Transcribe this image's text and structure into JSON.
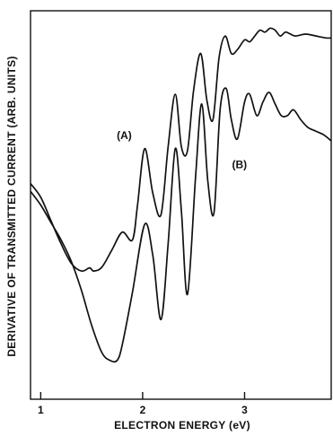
{
  "chart_data": {
    "type": "line",
    "title": "",
    "xlabel": "ELECTRON ENERGY (eV)",
    "ylabel": "DERIVATIVE OF TRANSMITTED CURRENT (ARB. UNITS)",
    "xlim": [
      0.9,
      3.85
    ],
    "ylim": [
      0,
      1
    ],
    "x_ticks": [
      1,
      2,
      3
    ],
    "x_tick_labels": [
      "1",
      "2",
      "3"
    ],
    "y_ticks": [],
    "grid": false,
    "legend": "none",
    "line_color": "#111111",
    "series": [
      {
        "name": "(A)",
        "x": [
          0.9,
          1.0,
          1.1,
          1.2,
          1.3,
          1.4,
          1.48,
          1.52,
          1.6,
          1.7,
          1.8,
          1.9,
          1.95,
          2.02,
          2.1,
          2.18,
          2.25,
          2.32,
          2.38,
          2.44,
          2.5,
          2.57,
          2.63,
          2.69,
          2.75,
          2.81,
          2.87,
          2.93,
          3.0,
          3.05,
          3.1,
          3.15,
          3.2,
          3.25,
          3.3,
          3.35,
          3.4,
          3.45,
          3.5,
          3.6,
          3.7,
          3.8,
          3.85
        ],
        "y": [
          0.555,
          0.52,
          0.46,
          0.4,
          0.35,
          0.33,
          0.338,
          0.33,
          0.34,
          0.385,
          0.43,
          0.41,
          0.5,
          0.645,
          0.53,
          0.475,
          0.65,
          0.785,
          0.65,
          0.64,
          0.795,
          0.89,
          0.77,
          0.72,
          0.88,
          0.935,
          0.89,
          0.9,
          0.925,
          0.92,
          0.935,
          0.95,
          0.945,
          0.955,
          0.95,
          0.935,
          0.945,
          0.94,
          0.935,
          0.94,
          0.935,
          0.93,
          0.93
        ]
      },
      {
        "name": "(B)",
        "x": [
          0.9,
          1.0,
          1.1,
          1.2,
          1.3,
          1.4,
          1.5,
          1.6,
          1.68,
          1.75,
          1.8,
          1.9,
          2.02,
          2.1,
          2.18,
          2.25,
          2.32,
          2.38,
          2.44,
          2.52,
          2.58,
          2.64,
          2.7,
          2.76,
          2.82,
          2.87,
          2.93,
          3.0,
          3.05,
          3.12,
          3.18,
          3.24,
          3.3,
          3.36,
          3.42,
          3.48,
          3.55,
          3.62,
          3.7,
          3.78,
          3.85
        ],
        "y": [
          0.535,
          0.5,
          0.455,
          0.41,
          0.355,
          0.28,
          0.19,
          0.12,
          0.1,
          0.1,
          0.14,
          0.275,
          0.45,
          0.37,
          0.205,
          0.4,
          0.645,
          0.485,
          0.27,
          0.575,
          0.76,
          0.56,
          0.48,
          0.745,
          0.8,
          0.72,
          0.67,
          0.765,
          0.785,
          0.73,
          0.765,
          0.79,
          0.76,
          0.73,
          0.73,
          0.745,
          0.72,
          0.7,
          0.69,
          0.68,
          0.665
        ]
      }
    ],
    "annotations": [
      {
        "text": "(A)",
        "x": 1.82,
        "y": 0.67
      },
      {
        "text": "(B)",
        "x": 2.95,
        "y": 0.595
      }
    ]
  }
}
